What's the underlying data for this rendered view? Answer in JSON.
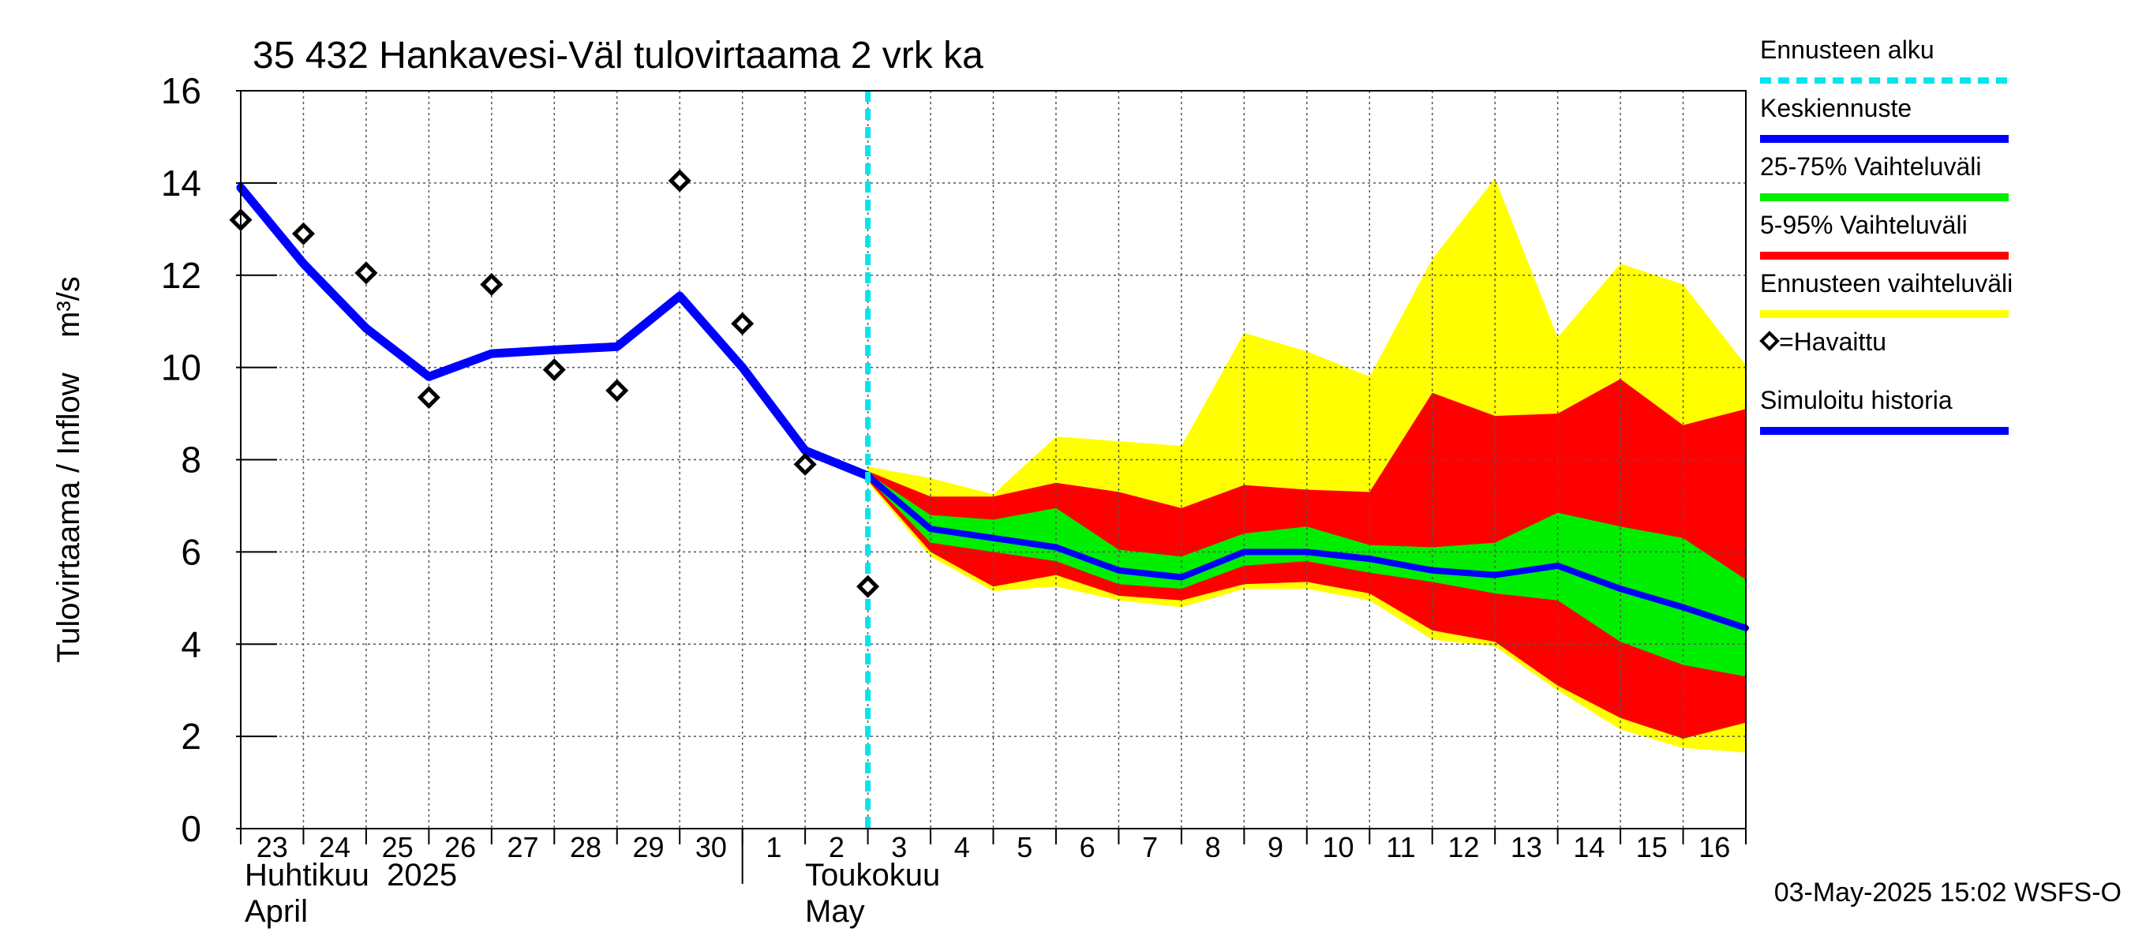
{
  "chart_data": {
    "type": "area",
    "title": "35 432 Hankavesi-Väl tulovirtaama 2 vrk ka",
    "ylabel": "Tulovirtaama / Inflow    m³/s",
    "ylim": [
      0,
      16
    ],
    "yticks": [
      "0",
      "2",
      "4",
      "6",
      "8",
      "10",
      "12",
      "14",
      "16"
    ],
    "x_day_labels": [
      "23",
      "24",
      "25",
      "26",
      "27",
      "28",
      "29",
      "30",
      "1",
      "2",
      "3",
      "4",
      "5",
      "6",
      "7",
      "8",
      "9",
      "10",
      "11",
      "12",
      "13",
      "14",
      "15",
      "16"
    ],
    "month_labels": [
      {
        "fi": "Huhtikuu  2025",
        "en": "April"
      },
      {
        "fi": "Toukokuu",
        "en": "May"
      }
    ],
    "grid": true,
    "legend_position": "right",
    "forecast_start_day": 10,
    "x_units": "day index (0 = 23 April 2025)",
    "simulated_history": {
      "name": "Simuloitu historia",
      "x": [
        0,
        1,
        2,
        3,
        4,
        5,
        6,
        7,
        8,
        9,
        10
      ],
      "y": [
        13.9,
        12.25,
        10.85,
        9.8,
        10.3,
        10.38,
        10.45,
        11.55,
        10.0,
        8.2,
        7.65
      ]
    },
    "observed": {
      "name": "=Havaittu",
      "x": [
        0,
        1,
        2,
        3,
        4,
        5,
        6,
        7,
        8,
        9,
        10
      ],
      "y": [
        13.2,
        12.9,
        12.05,
        9.35,
        11.8,
        9.95,
        9.5,
        14.05,
        10.95,
        7.9,
        5.25
      ]
    },
    "forecast_x": [
      10,
      11,
      12,
      13,
      14,
      15,
      16,
      17,
      18,
      19,
      20,
      21,
      22,
      23,
      24
    ],
    "median_forecast": {
      "name": "Keskiennuste",
      "y": [
        7.65,
        6.5,
        6.3,
        6.1,
        5.6,
        5.45,
        6.0,
        6.0,
        5.85,
        5.6,
        5.5,
        5.7,
        5.2,
        4.8,
        4.35
      ]
    },
    "range_25_75": {
      "name": "25-75% Vaihteluväli",
      "low": [
        7.6,
        6.2,
        6.0,
        5.8,
        5.3,
        5.2,
        5.7,
        5.8,
        5.55,
        5.35,
        5.1,
        4.95,
        4.05,
        3.55,
        3.3
      ],
      "high": [
        7.7,
        6.8,
        6.7,
        6.95,
        6.05,
        5.9,
        6.4,
        6.55,
        6.15,
        6.1,
        6.2,
        6.85,
        6.55,
        6.3,
        5.4
      ]
    },
    "range_5_95": {
      "name": "5-95% Vaihteluväli",
      "low": [
        7.55,
        6.0,
        5.25,
        5.5,
        5.05,
        4.95,
        5.3,
        5.35,
        5.1,
        4.3,
        4.05,
        3.1,
        2.4,
        1.95,
        2.3
      ],
      "high": [
        7.75,
        7.2,
        7.2,
        7.5,
        7.3,
        6.95,
        7.45,
        7.35,
        7.3,
        9.45,
        8.95,
        9.0,
        9.75,
        8.75,
        9.1
      ]
    },
    "range_full": {
      "name": "Ennusteen vaihteluväli",
      "low": [
        7.5,
        5.9,
        5.15,
        5.25,
        4.95,
        4.8,
        5.2,
        5.2,
        4.95,
        4.1,
        3.95,
        3.0,
        2.15,
        1.75,
        1.65
      ],
      "high": [
        7.85,
        7.6,
        7.25,
        8.5,
        8.4,
        8.3,
        10.75,
        10.35,
        9.8,
        12.35,
        14.1,
        10.65,
        12.25,
        11.8,
        10.05
      ]
    },
    "legend": [
      {
        "label": "Ennusteen alku",
        "style": "dash",
        "color": "#00e5ee"
      },
      {
        "label": "Keskiennuste",
        "style": "line",
        "color": "#0000ff"
      },
      {
        "label": "25-75% Vaihteluväli",
        "style": "line",
        "color": "#00ee00"
      },
      {
        "label": "5-95% Vaihteluväli",
        "style": "line",
        "color": "#ff0000"
      },
      {
        "label": "Ennusteen vaihteluväli",
        "style": "line",
        "color": "#ffff00"
      },
      {
        "label": "=Havaittu",
        "style": "marker",
        "color": "#000000"
      },
      {
        "label": "Simuloitu historia",
        "style": "line",
        "color": "#0000ff"
      }
    ],
    "footer": "03-May-2025 15:02 WSFS-O",
    "colors": {
      "history": "#0000ff",
      "median": "#0000ff",
      "band_25_75": "#00ee00",
      "band_5_95": "#ff0000",
      "band_full": "#ffff00",
      "forecast_start": "#00e5ee",
      "grid": "#555555"
    }
  }
}
